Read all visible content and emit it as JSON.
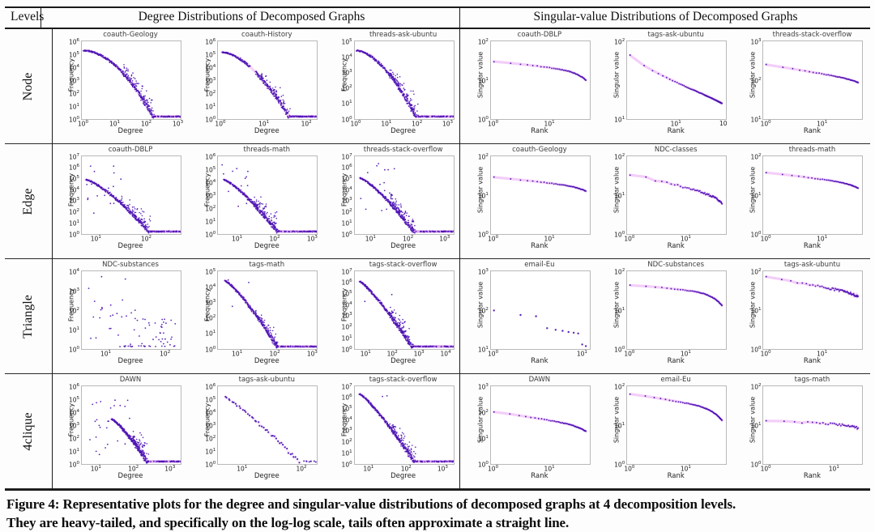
{
  "header": {
    "levels_label": "Levels",
    "left_title": "Degree Distributions of Decomposed Graphs",
    "right_title": "Singular-value Distributions of Decomposed Graphs"
  },
  "caption": {
    "line1": "Figure 4:  Representative plots for the degree and singular-value distributions of decomposed graphs at 4 decomposition levels.",
    "line2": "They are heavy-tailed, and specifically on the log-log scale, tails often approximate a straight line."
  },
  "colors": {
    "dot": "#4b12b3",
    "halo": "#d44fe8",
    "tail": "#b83be0",
    "box_border": "#b9b9b9"
  },
  "chart_data": {
    "type": "scatter",
    "scale": "log-log",
    "grid": "4 levels x 6 plots (3 degree distributions, 3 singular-value distributions)",
    "rows": [
      {
        "level": "Node",
        "plots": [
          {
            "title": "coauth-Geology",
            "ylabel": "Frequency",
            "xlabel": "Degree",
            "yexp": [
              6,
              5,
              4,
              3,
              2,
              1,
              0
            ],
            "xticks": [
              {
                "p": 0.02,
                "e": 0
              },
              {
                "p": 0.34,
                "e": 1
              },
              {
                "p": 0.66,
                "e": 2
              },
              {
                "p": 0.98,
                "e": 3
              }
            ],
            "data": {
              "kind": "decay",
              "seed": 101,
              "sx": 0.02,
              "sy": 0.12,
              "ex": 0.72,
              "pow": 1.9,
              "tail": 1,
              "spread": 0.2,
              "n": 240
            }
          },
          {
            "title": "coauth-History",
            "ylabel": "Frequency",
            "xlabel": "Degree",
            "yexp": [
              6,
              5,
              4,
              3,
              2,
              1,
              0
            ],
            "xticks": [
              {
                "p": 0.03,
                "e": 0
              },
              {
                "p": 0.47,
                "e": 1
              },
              {
                "p": 0.9,
                "e": 2
              }
            ],
            "data": {
              "kind": "decay",
              "seed": 102,
              "sx": 0.04,
              "sy": 0.14,
              "ex": 0.72,
              "pow": 1.7,
              "tail": 1,
              "spread": 0.16,
              "gap": [
                0.42,
                0.5
              ],
              "n": 220
            }
          },
          {
            "title": "threads-ask-ubuntu",
            "ylabel": "Frequency",
            "xlabel": "Degree",
            "yexp": [
              5,
              4,
              3,
              2,
              1,
              0
            ],
            "xticks": [
              {
                "p": 0.02,
                "e": 0
              },
              {
                "p": 0.33,
                "e": 1
              },
              {
                "p": 0.64,
                "e": 2
              },
              {
                "p": 0.95,
                "e": 3
              }
            ],
            "data": {
              "kind": "decay",
              "seed": 103,
              "sx": 0.02,
              "sy": 0.12,
              "ex": 0.62,
              "pow": 1.7,
              "tail": 1,
              "spread": 0.2,
              "n": 230
            }
          },
          {
            "title": "coauth-DBLP",
            "ylabel": "Singular value",
            "xlabel": "Rank",
            "yexp": [
              2,
              1,
              0
            ],
            "xticks": [
              {
                "p": 0.03,
                "e": 0
              },
              {
                "p": 0.6,
                "e": 1
              }
            ],
            "data": {
              "kind": "sv",
              "seed": 104,
              "R": 45,
              "y0": 0.26,
              "y1": 0.4,
              "shape": 1.15,
              "knee": 0.1
            }
          },
          {
            "title": "tags-ask-ubuntu",
            "ylabel": "Singular value",
            "xlabel": "Rank",
            "yexp": [
              2,
              1
            ],
            "xticks": [
              {
                "p": 0.5,
                "e": 1
              },
              {
                "p": 0.98,
                "t": "10"
              }
            ],
            "data": {
              "kind": "sv",
              "seed": 105,
              "R": 90,
              "y0": 0.18,
              "y1": 0.78,
              "shape": 0.8,
              "knee": 0.02
            }
          },
          {
            "title": "threads-stack-overflow",
            "ylabel": "Singular value",
            "xlabel": "Rank",
            "yexp": [
              3,
              2,
              1
            ],
            "xticks": [
              {
                "p": 0.03,
                "e": 0
              },
              {
                "p": 0.6,
                "e": 1
              }
            ],
            "data": {
              "kind": "sv",
              "seed": 106,
              "R": 45,
              "y0": 0.3,
              "y1": 0.5,
              "shape": 1.05,
              "knee": 0.03
            }
          }
        ]
      },
      {
        "level": "Edge",
        "plots": [
          {
            "title": "coauth-DBLP",
            "ylabel": "Frequency",
            "xlabel": "Degree",
            "yexp": [
              7,
              6,
              5,
              4,
              3,
              2,
              1,
              0
            ],
            "xticks": [
              {
                "p": 0.15,
                "e": 1
              },
              {
                "p": 0.66,
                "e": 2
              }
            ],
            "data": {
              "kind": "decay",
              "seed": 107,
              "sx": 0.04,
              "sy": 0.3,
              "ex": 0.68,
              "pow": 1.35,
              "tail": 1,
              "spread": 0.18,
              "cloud": 16,
              "n": 230
            }
          },
          {
            "title": "threads-math",
            "ylabel": "Frequency",
            "xlabel": "Degree",
            "yexp": [
              6,
              5,
              4,
              3,
              2,
              1,
              0
            ],
            "xticks": [
              {
                "p": 0.2,
                "e": 1
              },
              {
                "p": 0.58,
                "e": 2
              },
              {
                "p": 0.96,
                "e": 3
              }
            ],
            "data": {
              "kind": "decay",
              "seed": 108,
              "sx": 0.06,
              "sy": 0.3,
              "ex": 0.6,
              "pow": 1.3,
              "tail": 1,
              "spread": 0.2,
              "cloud": 13,
              "n": 220
            }
          },
          {
            "title": "threads-stack-overflow",
            "ylabel": "Frequency",
            "xlabel": "Degree",
            "yexp": [
              7,
              6,
              5,
              4,
              3,
              2,
              1,
              0
            ],
            "xticks": [
              {
                "p": 0.17,
                "e": 1
              },
              {
                "p": 0.55,
                "e": 2
              },
              {
                "p": 0.92,
                "e": 3
              }
            ],
            "data": {
              "kind": "decay",
              "seed": 109,
              "sx": 0.05,
              "sy": 0.28,
              "ex": 0.6,
              "pow": 1.3,
              "tail": 1,
              "spread": 0.2,
              "cloud": 15,
              "n": 230
            }
          },
          {
            "title": "coauth-Geology",
            "ylabel": "Singular value",
            "xlabel": "Rank",
            "yexp": [
              2,
              1,
              0
            ],
            "xticks": [
              {
                "p": 0.03,
                "e": 0
              },
              {
                "p": 0.6,
                "e": 1
              }
            ],
            "data": {
              "kind": "sv",
              "seed": 110,
              "R": 45,
              "y0": 0.27,
              "y1": 0.4,
              "shape": 1.1,
              "knee": 0.05
            }
          },
          {
            "title": "NDC-classes",
            "ylabel": "Singular value",
            "xlabel": "Rank",
            "yexp": [
              2,
              1,
              0
            ],
            "xticks": [
              {
                "p": 0.03,
                "e": 0
              },
              {
                "p": 0.6,
                "e": 1
              }
            ],
            "data": {
              "kind": "sv",
              "seed": 111,
              "R": 55,
              "y0": 0.23,
              "y1": 0.52,
              "shape": 1.05,
              "knee": 0.08,
              "steps": 1
            }
          },
          {
            "title": "threads-math",
            "ylabel": "Singular value",
            "xlabel": "Rank",
            "yexp": [
              2,
              1,
              0
            ],
            "xticks": [
              {
                "p": 0.03,
                "e": 0
              },
              {
                "p": 0.6,
                "e": 1
              }
            ],
            "data": {
              "kind": "sv",
              "seed": 112,
              "R": 50,
              "y0": 0.21,
              "y1": 0.36,
              "shape": 1.1,
              "knee": 0.05
            }
          }
        ]
      },
      {
        "level": "Triangle",
        "plots": [
          {
            "title": "NDC-substances",
            "ylabel": "Frequency",
            "xlabel": "Degree",
            "yexp": [
              4,
              3,
              2,
              1,
              0
            ],
            "xticks": [
              {
                "p": 0.25,
                "e": 1
              },
              {
                "p": 0.85,
                "e": 2
              }
            ],
            "data": {
              "kind": "scatter",
              "seed": 113,
              "n": 55
            }
          },
          {
            "title": "tags-math",
            "ylabel": "Frequency",
            "xlabel": "Degree",
            "yexp": [
              5,
              4,
              3,
              2,
              1,
              0
            ],
            "xticks": [
              {
                "p": 0.2,
                "e": 1
              },
              {
                "p": 0.58,
                "e": 2
              },
              {
                "p": 0.96,
                "e": 3
              }
            ],
            "data": {
              "kind": "decay",
              "seed": 114,
              "sx": 0.07,
              "sy": 0.12,
              "ex": 0.6,
              "pow": 1.25,
              "tail": 1,
              "spread": 0.15,
              "cloud": 3,
              "n": 230
            }
          },
          {
            "title": "tags-stack-overflow",
            "ylabel": "Frequency",
            "xlabel": "Degree",
            "yexp": [
              7,
              6,
              5,
              4,
              3,
              2,
              1,
              0
            ],
            "xticks": [
              {
                "p": 0.12,
                "e": 1
              },
              {
                "p": 0.39,
                "e": 2
              },
              {
                "p": 0.66,
                "e": 3
              },
              {
                "p": 0.93,
                "e": 4
              }
            ],
            "data": {
              "kind": "decay",
              "seed": 115,
              "sx": 0.05,
              "sy": 0.13,
              "ex": 0.58,
              "pow": 1.2,
              "tail": 1,
              "spread": 0.17,
              "cloud": 2,
              "n": 240
            }
          },
          {
            "title": "email-Eu",
            "ylabel": "Singular value",
            "xlabel": "Rank",
            "yexp": [
              3,
              2,
              1
            ],
            "xticks": [
              {
                "p": 0.03,
                "e": 0
              },
              {
                "p": 0.93,
                "e": 1
              }
            ],
            "data": {
              "kind": "sv",
              "seed": 116,
              "R": 11,
              "ys": [
                0.5,
                0.56,
                0.58,
                0.73,
                0.75,
                0.77,
                0.78,
                0.79,
                0.8,
                0.94,
                0.96
              ]
            }
          },
          {
            "title": "NDC-substances",
            "ylabel": "Singular value",
            "xlabel": "Rank",
            "yexp": [
              2,
              1,
              0
            ],
            "xticks": [
              {
                "p": 0.03,
                "e": 0
              },
              {
                "p": 0.6,
                "e": 1
              }
            ],
            "data": {
              "kind": "sv",
              "seed": 117,
              "R": 55,
              "y0": 0.18,
              "y1": 0.3,
              "shape": 1.3,
              "knee": 0.14
            }
          },
          {
            "title": "tags-ask-ubuntu",
            "ylabel": "Singular value",
            "xlabel": "Rank",
            "yexp": [
              2,
              1,
              0
            ],
            "xticks": [
              {
                "p": 0.03,
                "e": 0
              },
              {
                "p": 0.6,
                "e": 1
              }
            ],
            "data": {
              "kind": "sv",
              "seed": 118,
              "R": 60,
              "y0": 0.08,
              "y1": 0.28,
              "shape": 1.0,
              "knee": 0.05,
              "steps": 1
            }
          }
        ]
      },
      {
        "level": "4clique",
        "plots": [
          {
            "title": "DAWN",
            "ylabel": "Frequency",
            "xlabel": "Degree",
            "yexp": [
              6,
              5,
              4,
              3,
              2,
              1,
              0
            ],
            "xticks": [
              {
                "p": 0.15,
                "e": 1
              },
              {
                "p": 0.53,
                "e": 2
              },
              {
                "p": 0.9,
                "e": 3
              }
            ],
            "data": {
              "kind": "decay",
              "seed": 119,
              "sx": 0.3,
              "sy": 0.42,
              "ex": 0.66,
              "pow": 1.25,
              "tail": 1,
              "spread": 0.2,
              "cloud": 28,
              "cloudX0": 0.04,
              "cloudX1": 0.5,
              "cloudY0": 0.15,
              "cloudY1": 0.88,
              "n": 200
            }
          },
          {
            "title": "tags-ask-ubuntu",
            "ylabel": "Frequency",
            "xlabel": "Degree",
            "yexp": [
              6,
              5,
              4,
              3,
              2,
              1,
              0
            ],
            "xticks": [
              {
                "p": 0.25,
                "e": 1
              },
              {
                "p": 0.85,
                "e": 2
              }
            ],
            "data": {
              "kind": "decay",
              "seed": 120,
              "sparse": 1,
              "n": 42,
              "sx": 0.07,
              "sy": 0.14,
              "ex": 0.82,
              "pow": 1.15,
              "tail": 1
            }
          },
          {
            "title": "tags-stack-overflow",
            "ylabel": "Frequency",
            "xlabel": "Degree",
            "yexp": [
              7,
              6,
              5,
              4,
              3,
              2,
              1,
              0
            ],
            "xticks": [
              {
                "p": 0.15,
                "e": 1
              },
              {
                "p": 0.53,
                "e": 2
              },
              {
                "p": 0.9,
                "e": 3
              }
            ],
            "data": {
              "kind": "decay",
              "seed": 121,
              "sx": 0.05,
              "sy": 0.1,
              "ex": 0.6,
              "pow": 1.2,
              "tail": 1,
              "spread": 0.17,
              "cloud": 2,
              "n": 240
            }
          },
          {
            "title": "DAWN",
            "ylabel": "Singular value",
            "xlabel": "Rank",
            "yexp": [
              3,
              2,
              1,
              0
            ],
            "xticks": [
              {
                "p": 0.03,
                "e": 0
              },
              {
                "p": 0.6,
                "e": 1
              }
            ],
            "data": {
              "kind": "sv",
              "seed": 122,
              "R": 55,
              "y0": 0.33,
              "y1": 0.52,
              "shape": 1.1,
              "knee": 0.06
            }
          },
          {
            "title": "email-Eu",
            "ylabel": "Singular value",
            "xlabel": "Rank",
            "yexp": [
              2,
              1,
              0
            ],
            "xticks": [
              {
                "p": 0.03,
                "e": 0
              },
              {
                "p": 0.6,
                "e": 1
              }
            ],
            "data": {
              "kind": "sv",
              "seed": 123,
              "R": 65,
              "y0": 0.1,
              "y1": 0.3,
              "shape": 1.1,
              "knee": 0.14
            }
          },
          {
            "title": "tags-math",
            "ylabel": "Singular value",
            "xlabel": "Rank",
            "yexp": [
              2,
              1,
              0
            ],
            "xticks": [
              {
                "p": 0.03,
                "e": 0
              },
              {
                "p": 0.72,
                "e": 1
              }
            ],
            "data": {
              "kind": "sv",
              "seed": 124,
              "R": 35,
              "y0": 0.44,
              "y1": 0.5,
              "shape": 1.0,
              "knee": 0.04,
              "steps": 1
            }
          }
        ]
      }
    ]
  }
}
